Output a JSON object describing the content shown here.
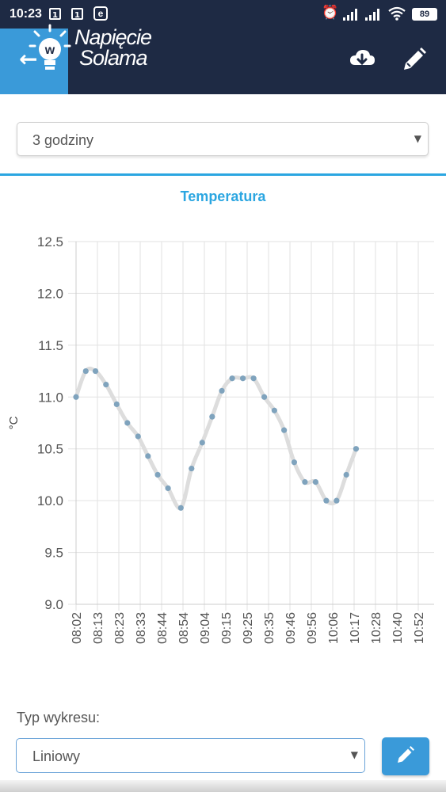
{
  "status_bar": {
    "time": "10:23",
    "notification_badge_1": "1",
    "notification_badge_2": "1",
    "app_icon_letter": "e",
    "battery_level": "89"
  },
  "app_bar": {
    "logo_line1": "Napięcie",
    "logo_line2": "Solama",
    "logo_bulb_letter": "w",
    "icons": [
      "back-arrow-icon",
      "cloud-download-icon",
      "pencil-icon"
    ],
    "background_color": "#1e2a44",
    "back_button_color": "#3a9ad9"
  },
  "range_select": {
    "value": "3 godziny"
  },
  "chart_type_section": {
    "label": "Typ wykresu:",
    "value": "Liniowy"
  },
  "accent_color": "#2ba6e1",
  "chart_data": {
    "type": "line",
    "title": "Temperatura",
    "ylabel": "°C",
    "xlabel": "",
    "ylim": [
      9.0,
      12.5
    ],
    "y_ticks": [
      "12.5",
      "12.0",
      "11.5",
      "11.0",
      "10.5",
      "10.0",
      "9.5",
      "9.0"
    ],
    "x_ticks": [
      "08:02",
      "08:13",
      "08:23",
      "08:33",
      "08:44",
      "08:54",
      "09:04",
      "09:15",
      "09:25",
      "09:35",
      "09:46",
      "09:56",
      "10:06",
      "10:17",
      "10:28",
      "10:40",
      "10:52"
    ],
    "grid": true,
    "legend": "none",
    "line_color": "#dddddd",
    "point_color": "#7fa3bd",
    "points": [
      {
        "x": "08:02",
        "y": 11.0
      },
      {
        "x": "08:07",
        "y": 11.25
      },
      {
        "x": "08:12",
        "y": 11.25
      },
      {
        "x": "08:17",
        "y": 11.12
      },
      {
        "x": "08:22",
        "y": 10.93
      },
      {
        "x": "08:27",
        "y": 10.75
      },
      {
        "x": "08:32",
        "y": 10.62
      },
      {
        "x": "08:37",
        "y": 10.43
      },
      {
        "x": "08:42",
        "y": 10.25
      },
      {
        "x": "08:47",
        "y": 10.12
      },
      {
        "x": "08:53",
        "y": 9.93
      },
      {
        "x": "08:58",
        "y": 10.31
      },
      {
        "x": "09:03",
        "y": 10.56
      },
      {
        "x": "09:08",
        "y": 10.81
      },
      {
        "x": "09:13",
        "y": 11.06
      },
      {
        "x": "09:18",
        "y": 11.18
      },
      {
        "x": "09:23",
        "y": 11.18
      },
      {
        "x": "09:28",
        "y": 11.18
      },
      {
        "x": "09:33",
        "y": 11.0
      },
      {
        "x": "09:38",
        "y": 10.87
      },
      {
        "x": "09:43",
        "y": 10.68
      },
      {
        "x": "09:48",
        "y": 10.37
      },
      {
        "x": "09:53",
        "y": 10.18
      },
      {
        "x": "09:58",
        "y": 10.18
      },
      {
        "x": "10:03",
        "y": 10.0
      },
      {
        "x": "10:08",
        "y": 10.0
      },
      {
        "x": "10:13",
        "y": 10.25
      },
      {
        "x": "10:18",
        "y": 10.5
      }
    ]
  }
}
